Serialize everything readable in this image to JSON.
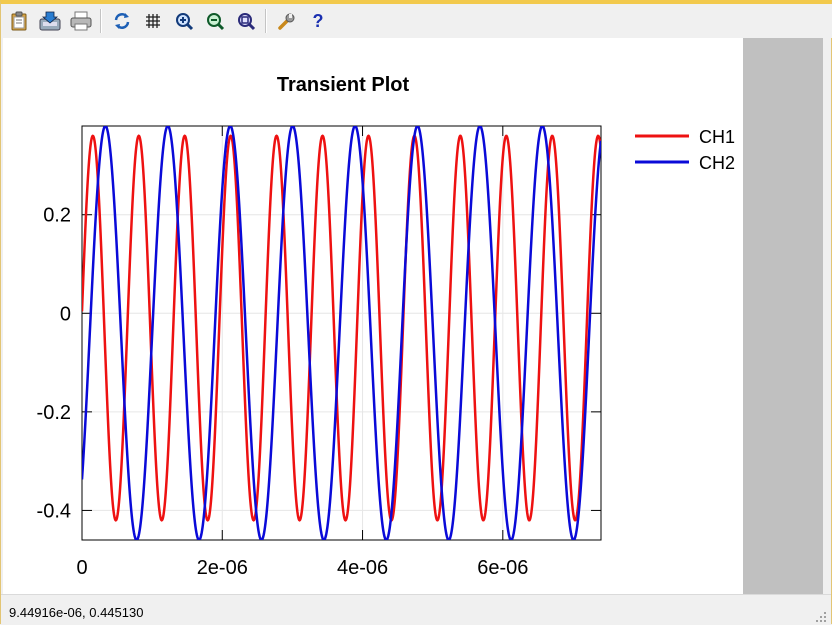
{
  "toolbar": {
    "buttons": [
      {
        "id": "copy",
        "icon": "clipboard-icon"
      },
      {
        "id": "save",
        "icon": "save-export-icon"
      },
      {
        "id": "print",
        "icon": "printer-icon"
      },
      {
        "id": "refresh",
        "icon": "refresh-icon"
      },
      {
        "id": "grid",
        "icon": "grid-icon"
      },
      {
        "id": "zoom-in",
        "icon": "zoom-in-icon"
      },
      {
        "id": "zoom-out",
        "icon": "zoom-out-icon"
      },
      {
        "id": "zoom-fit",
        "icon": "zoom-fit-icon"
      },
      {
        "id": "settings",
        "icon": "wrench-icon"
      },
      {
        "id": "help",
        "icon": "help-icon",
        "glyph": "?"
      }
    ]
  },
  "chart_data": {
    "type": "line",
    "title": "Transient Plot",
    "xlim": [
      0,
      7.4e-06
    ],
    "ylim": [
      -0.46,
      0.38
    ],
    "xticks": [
      "0",
      "2e-06",
      "4e-06",
      "6e-06"
    ],
    "xtick_values": [
      0,
      2e-06,
      4e-06,
      6e-06
    ],
    "yticks": [
      "0.2",
      "0",
      "-0.2",
      "-0.4"
    ],
    "ytick_values": [
      0.2,
      0,
      -0.2,
      -0.4
    ],
    "grid": true,
    "legend_position": "top-right-outside",
    "series": [
      {
        "name": "CH1",
        "color": "#ee1111",
        "waveform": "sine",
        "offset": -0.03,
        "amplitude": 0.39,
        "period_s": 6.55e-07,
        "phase_deg": 5
      },
      {
        "name": "CH2",
        "color": "#0a0ad8",
        "waveform": "sine",
        "offset": -0.04,
        "amplitude": 0.42,
        "period_s": 8.9e-07,
        "phase_deg": -45
      }
    ]
  },
  "status": {
    "coordinates": "9.44916e-06,  0.445130"
  }
}
